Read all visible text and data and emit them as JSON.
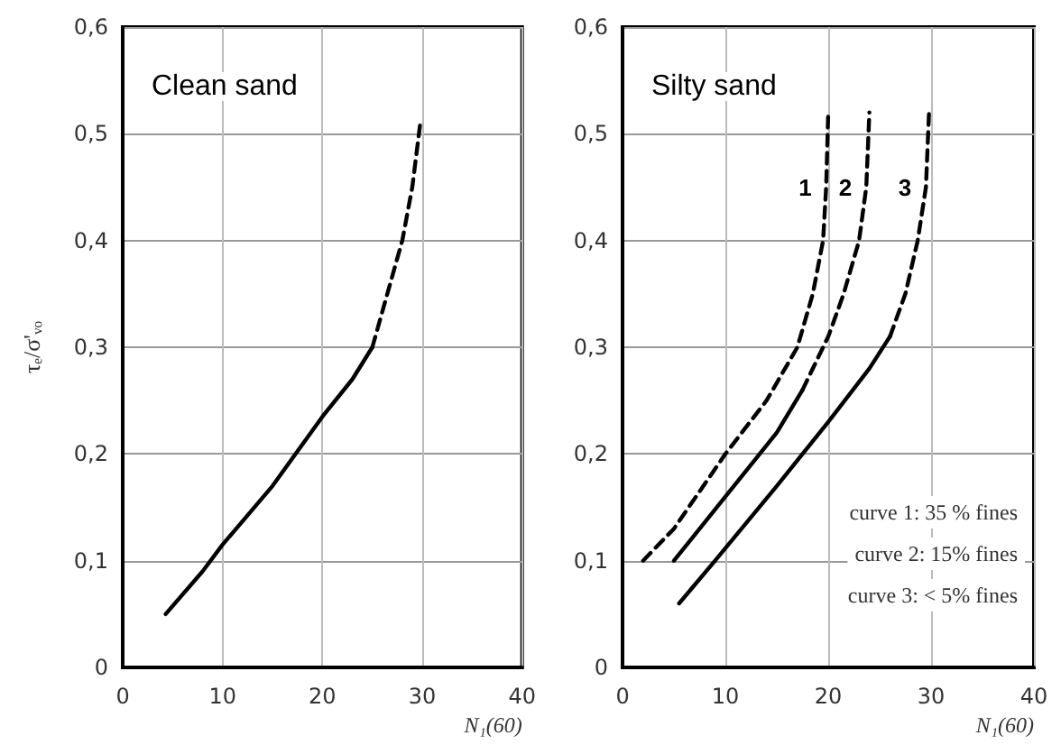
{
  "chart_data": [
    {
      "type": "line",
      "ylabel": "τₑ/σ'ᵥₒ",
      "xlabel": "N₁(60)",
      "annotations": [
        "Clean sand"
      ],
      "xlim": [
        0,
        40
      ],
      "xticks": [
        0,
        10,
        20,
        30,
        40
      ],
      "ylim": [
        0,
        0.6
      ],
      "yticks": [
        {
          "value": 0,
          "label": "0"
        },
        {
          "value": 0.1,
          "label": "0,1"
        },
        {
          "value": 0.2,
          "label": "0,2"
        },
        {
          "value": 0.3,
          "label": "0,3"
        },
        {
          "value": 0.4,
          "label": "0,4"
        },
        {
          "value": 0.5,
          "label": "0,5"
        },
        {
          "value": 0.6,
          "label": "0,6"
        }
      ],
      "grid": true,
      "legend": false,
      "marker": "none",
      "series": [
        {
          "color": "#000000",
          "line_style": "solid",
          "x": [
            4.3,
            8,
            10,
            15,
            20,
            23,
            25
          ],
          "values": [
            0.05,
            0.09,
            0.115,
            0.17,
            0.235,
            0.27,
            0.3
          ]
        },
        {
          "color": "#000000",
          "line_style": "dashed",
          "x": [
            25,
            26.5,
            28,
            29,
            29.8
          ],
          "values": [
            0.3,
            0.35,
            0.4,
            0.45,
            0.51
          ]
        }
      ]
    },
    {
      "type": "line",
      "xlabel": "N₁(60)",
      "annotations": [
        "Silty sand",
        "curve 1: 35 % fines",
        "curve 2: 15% fines",
        "curve 3: < 5% fines"
      ],
      "xlim": [
        0,
        40
      ],
      "xticks": [
        0,
        10,
        20,
        30,
        40
      ],
      "ylim": [
        0,
        0.6
      ],
      "yticks": [
        {
          "value": 0,
          "label": "0"
        },
        {
          "value": 0.1,
          "label": "0,1"
        },
        {
          "value": 0.2,
          "label": "0,2"
        },
        {
          "value": 0.3,
          "label": "0,3"
        },
        {
          "value": 0.4,
          "label": "0,4"
        },
        {
          "value": 0.5,
          "label": "0,5"
        },
        {
          "value": 0.6,
          "label": "0,6"
        }
      ],
      "grid": true,
      "legend": false,
      "marker": "none",
      "series": [
        {
          "name": "1",
          "color": "#000000",
          "line_style": "dashed",
          "x": [
            2,
            5,
            10,
            14,
            17,
            18.5,
            19.5,
            19.8,
            20
          ],
          "values": [
            0.1,
            0.13,
            0.2,
            0.25,
            0.3,
            0.35,
            0.4,
            0.45,
            0.52
          ]
        },
        {
          "color": "#000000",
          "line_style": "solid",
          "x": [
            5,
            10,
            15,
            17.5
          ],
          "values": [
            0.1,
            0.16,
            0.22,
            0.26
          ]
        },
        {
          "name": "2",
          "color": "#000000",
          "line_style": "dashed",
          "x": [
            17.5,
            20,
            21.5,
            23,
            23.7,
            24
          ],
          "values": [
            0.26,
            0.31,
            0.35,
            0.4,
            0.45,
            0.52
          ]
        },
        {
          "color": "#000000",
          "line_style": "solid",
          "x": [
            5.5,
            9,
            15,
            20,
            24,
            26
          ],
          "values": [
            0.06,
            0.1,
            0.17,
            0.23,
            0.28,
            0.31
          ]
        },
        {
          "name": "3",
          "color": "#000000",
          "line_style": "dashed",
          "x": [
            26,
            27.5,
            28.7,
            29.5,
            29.8
          ],
          "values": [
            0.31,
            0.35,
            0.4,
            0.45,
            0.52
          ]
        }
      ]
    }
  ]
}
